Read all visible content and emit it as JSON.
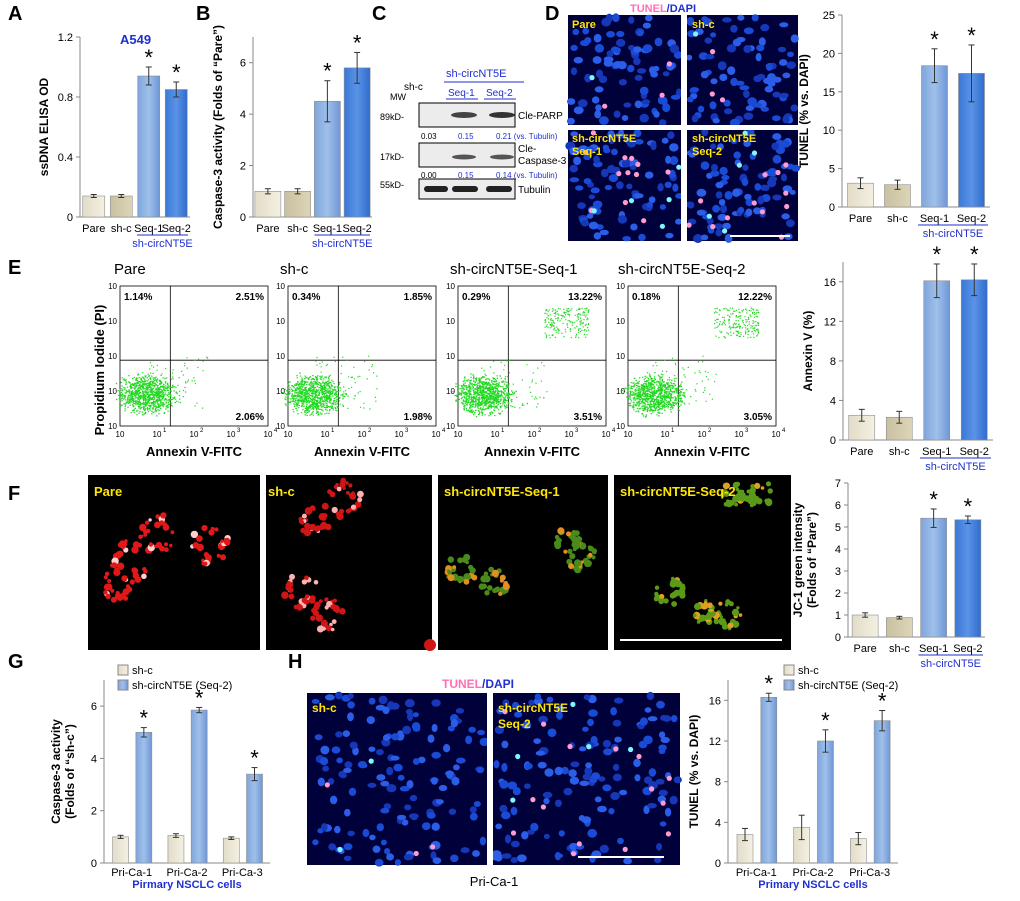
{
  "labels": {
    "a": "A",
    "b": "B",
    "c": "C",
    "d": "D",
    "e": "E",
    "f": "F",
    "g": "G",
    "h": "H"
  },
  "colors": {
    "pare": "#eeeadc",
    "shc": "#d9d2b6",
    "seq1": "#9dbbe6",
    "seq2": "#4a86e0",
    "blue_text": "#1f2fd0",
    "yellow": "#ffe600",
    "pink": "#ff6fb5"
  },
  "panel_a": {
    "cell_line": "A549"
  },
  "panel_c": {
    "lane_shc": "sh-c",
    "group": "sh-circNT5E",
    "lane_seq1": "Seq-1",
    "lane_seq2": "Seq-2",
    "mw": "MW",
    "mw1": "89kD-",
    "mw2": "17kD-",
    "mw3": "55kD-",
    "band1": "Cle-PARP",
    "band2a": "Cle-",
    "band2b": "Caspase-3",
    "band3": "Tubulin",
    "q1a": "0.03",
    "q1b": "0.15",
    "q1c": "0.21 (vs. Tubulin)",
    "q2a": "0.00",
    "q2b": "0.15",
    "q2c": "0.14 (vs. Tubulin)"
  },
  "panel_d": {
    "title_a": "TUNEL",
    "title_b": "/DAPI",
    "q1": "Pare",
    "q2": "sh-c",
    "q3a": "sh-circNT5E",
    "q3b": "Seq-1",
    "q4a": "sh-circNT5E",
    "q4b": "Seq-2"
  },
  "panel_e": {
    "titles": [
      "Pare",
      "sh-c",
      "sh-circNT5E-Seq-1",
      "sh-circNT5E-Seq-2"
    ],
    "ylabel": "Propidium Iodide (PI)",
    "xlabel": "Annexin V-FITC",
    "ticks": [
      "10",
      "1",
      "10",
      "2",
      "10",
      "3",
      "10",
      "4"
    ],
    "quadrants": [
      {
        "ul": "1.14%",
        "ur": "2.51%",
        "lr": "2.06%"
      },
      {
        "ul": "0.34%",
        "ur": "1.85%",
        "lr": "1.98%"
      },
      {
        "ul": "0.29%",
        "ur": "13.22%",
        "lr": "3.51%"
      },
      {
        "ul": "0.18%",
        "ur": "12.22%",
        "lr": "3.05%"
      }
    ]
  },
  "panel_f": {
    "q1": "Pare",
    "q2": "sh-c",
    "q3": "sh-circNT5E-Seq-1",
    "q4": "sh-circNT5E-Seq-2"
  },
  "panel_h": {
    "title_a": "TUNEL",
    "title_b": "/DAPI",
    "q1": "sh-c",
    "q2a": "sh-circNT5E",
    "q2b": "Seq-2",
    "caption": "Pri-Ca-1"
  },
  "chart_data": [
    {
      "id": "A",
      "type": "bar",
      "ylabel": "ssDNA ELISA OD",
      "ylim": [
        0,
        1.2
      ],
      "ticks": [
        "0",
        "0.4",
        "0.8",
        "1.2"
      ],
      "categories": [
        "Pare",
        "sh-c",
        "Seq-1",
        "Seq-2"
      ],
      "values": [
        0.14,
        0.14,
        0.94,
        0.85
      ],
      "errors": [
        0.01,
        0.01,
        0.06,
        0.05
      ],
      "significant": [
        false,
        false,
        true,
        true
      ],
      "group_label": "sh-circNT5E",
      "star": "*"
    },
    {
      "id": "B",
      "type": "bar",
      "ylabel": "Caspase-3 activity (Folds of “Pare”)",
      "ylim": [
        0,
        7
      ],
      "ticks": [
        "0",
        "2",
        "4",
        "6"
      ],
      "categories": [
        "Pare",
        "sh-c",
        "Seq-1",
        "Seq-2"
      ],
      "values": [
        1.0,
        1.0,
        4.5,
        5.8
      ],
      "errors": [
        0.1,
        0.1,
        0.8,
        0.6
      ],
      "significant": [
        false,
        false,
        true,
        true
      ],
      "group_label": "sh-circNT5E",
      "star": "*"
    },
    {
      "id": "D",
      "type": "bar",
      "ylabel": "TUNEL (% vs. DAPI)",
      "ylim": [
        0,
        25
      ],
      "ticks": [
        "0",
        "5",
        "10",
        "15",
        "20",
        "25"
      ],
      "categories": [
        "Pare",
        "sh-c",
        "Seq-1",
        "Seq-2"
      ],
      "values": [
        3.1,
        2.9,
        18.4,
        17.4
      ],
      "errors": [
        0.7,
        0.6,
        2.2,
        3.7
      ],
      "significant": [
        false,
        false,
        true,
        true
      ],
      "group_label": "sh-circNT5E",
      "star": "*"
    },
    {
      "id": "E",
      "type": "bar",
      "ylabel": "Annexin V (%)",
      "ylim": [
        0,
        18
      ],
      "ticks": [
        "0",
        "4",
        "8",
        "12",
        "16"
      ],
      "categories": [
        "Pare",
        "sh-c",
        "Seq-1",
        "Seq-2"
      ],
      "values": [
        2.5,
        2.3,
        16.1,
        16.2
      ],
      "errors": [
        0.6,
        0.6,
        1.7,
        1.6
      ],
      "significant": [
        false,
        false,
        true,
        true
      ],
      "group_label": "sh-circNT5E",
      "star": "*"
    },
    {
      "id": "F",
      "type": "bar",
      "ylabel": "JC-1 green intensity (Folds of “Pare”)",
      "ylim": [
        0,
        7
      ],
      "ticks": [
        "0",
        "1",
        "2",
        "3",
        "4",
        "5",
        "6",
        "7"
      ],
      "categories": [
        "Pare",
        "sh-c",
        "Seq-1",
        "Seq-2"
      ],
      "values": [
        1.0,
        0.88,
        5.4,
        5.33
      ],
      "errors": [
        0.1,
        0.06,
        0.42,
        0.17
      ],
      "significant": [
        false,
        false,
        true,
        true
      ],
      "group_label": "sh-circNT5E",
      "star": "*"
    },
    {
      "id": "G",
      "type": "bar",
      "ylabel": "Caspase-3 activity (Folds of “sh-c”)",
      "ylim": [
        0,
        7
      ],
      "ticks": [
        "0",
        "2",
        "4",
        "6"
      ],
      "categories": [
        "Pri-Ca-1",
        "Pri-Ca-2",
        "Pri-Ca-3"
      ],
      "series": [
        {
          "name": "sh-c",
          "values": [
            1.0,
            1.05,
            0.95
          ],
          "errors": [
            0.06,
            0.07,
            0.05
          ]
        },
        {
          "name": "sh-circNT5E (Seq-2)",
          "values": [
            5.0,
            5.85,
            3.4
          ],
          "errors": [
            0.18,
            0.1,
            0.25
          ]
        }
      ],
      "group_label": "Pirmary NSCLC cells",
      "star": "*"
    },
    {
      "id": "H",
      "type": "bar",
      "ylabel": "TUNEL (% vs. DAPI)",
      "ylim": [
        0,
        18
      ],
      "ticks": [
        "0",
        "4",
        "8",
        "12",
        "16"
      ],
      "categories": [
        "Pri-Ca-1",
        "Pri-Ca-2",
        "Pri-Ca-3"
      ],
      "series": [
        {
          "name": "sh-c",
          "values": [
            2.8,
            3.5,
            2.4
          ],
          "errors": [
            0.6,
            1.2,
            0.6
          ]
        },
        {
          "name": "sh-circNT5E (Seq-2)",
          "values": [
            16.3,
            12.0,
            14.0
          ],
          "errors": [
            0.4,
            1.1,
            1.0
          ]
        }
      ],
      "group_label": "Primary NSCLC cells",
      "star": "*"
    }
  ]
}
